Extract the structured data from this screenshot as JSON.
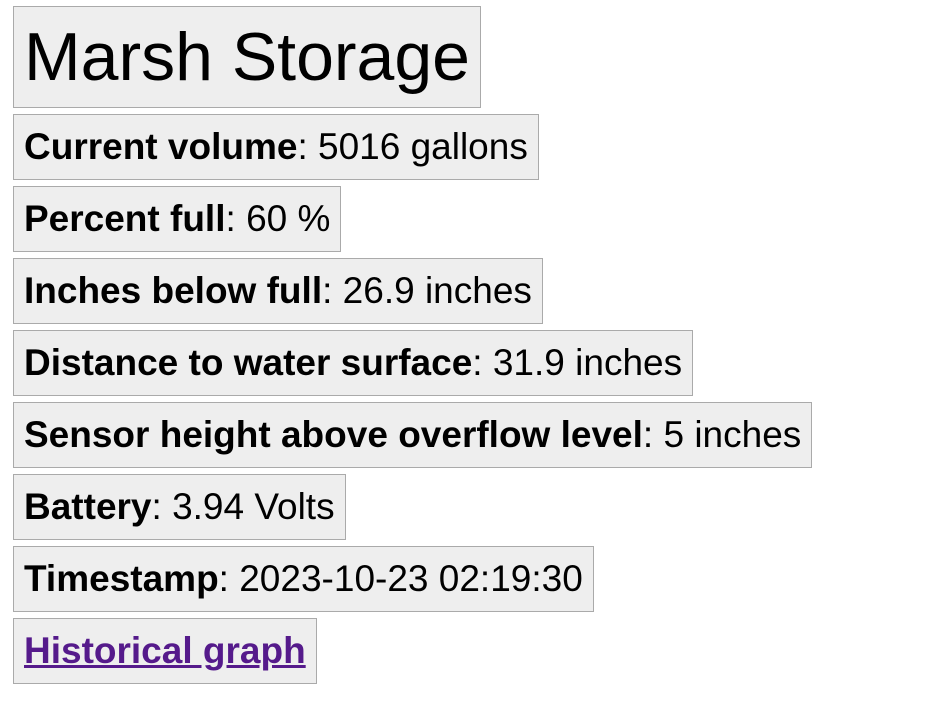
{
  "title": "Marsh Storage",
  "rows": [
    {
      "label": "Current volume",
      "value": "5016 gallons"
    },
    {
      "label": "Percent full",
      "value": "60 %"
    },
    {
      "label": "Inches below full",
      "value": "26.9 inches"
    },
    {
      "label": "Distance to water surface",
      "value": "31.9 inches"
    },
    {
      "label": "Sensor height above overflow level",
      "value": "5 inches"
    },
    {
      "label": "Battery",
      "value": "3.94 Volts"
    },
    {
      "label": "Timestamp",
      "value": "2023-10-23 02:19:30"
    }
  ],
  "link": {
    "label": "Historical graph"
  },
  "separator": ": ",
  "colors": {
    "box_background": "#eeeeee",
    "box_border": "#aaaaaa",
    "visited_link": "#551a8b"
  }
}
